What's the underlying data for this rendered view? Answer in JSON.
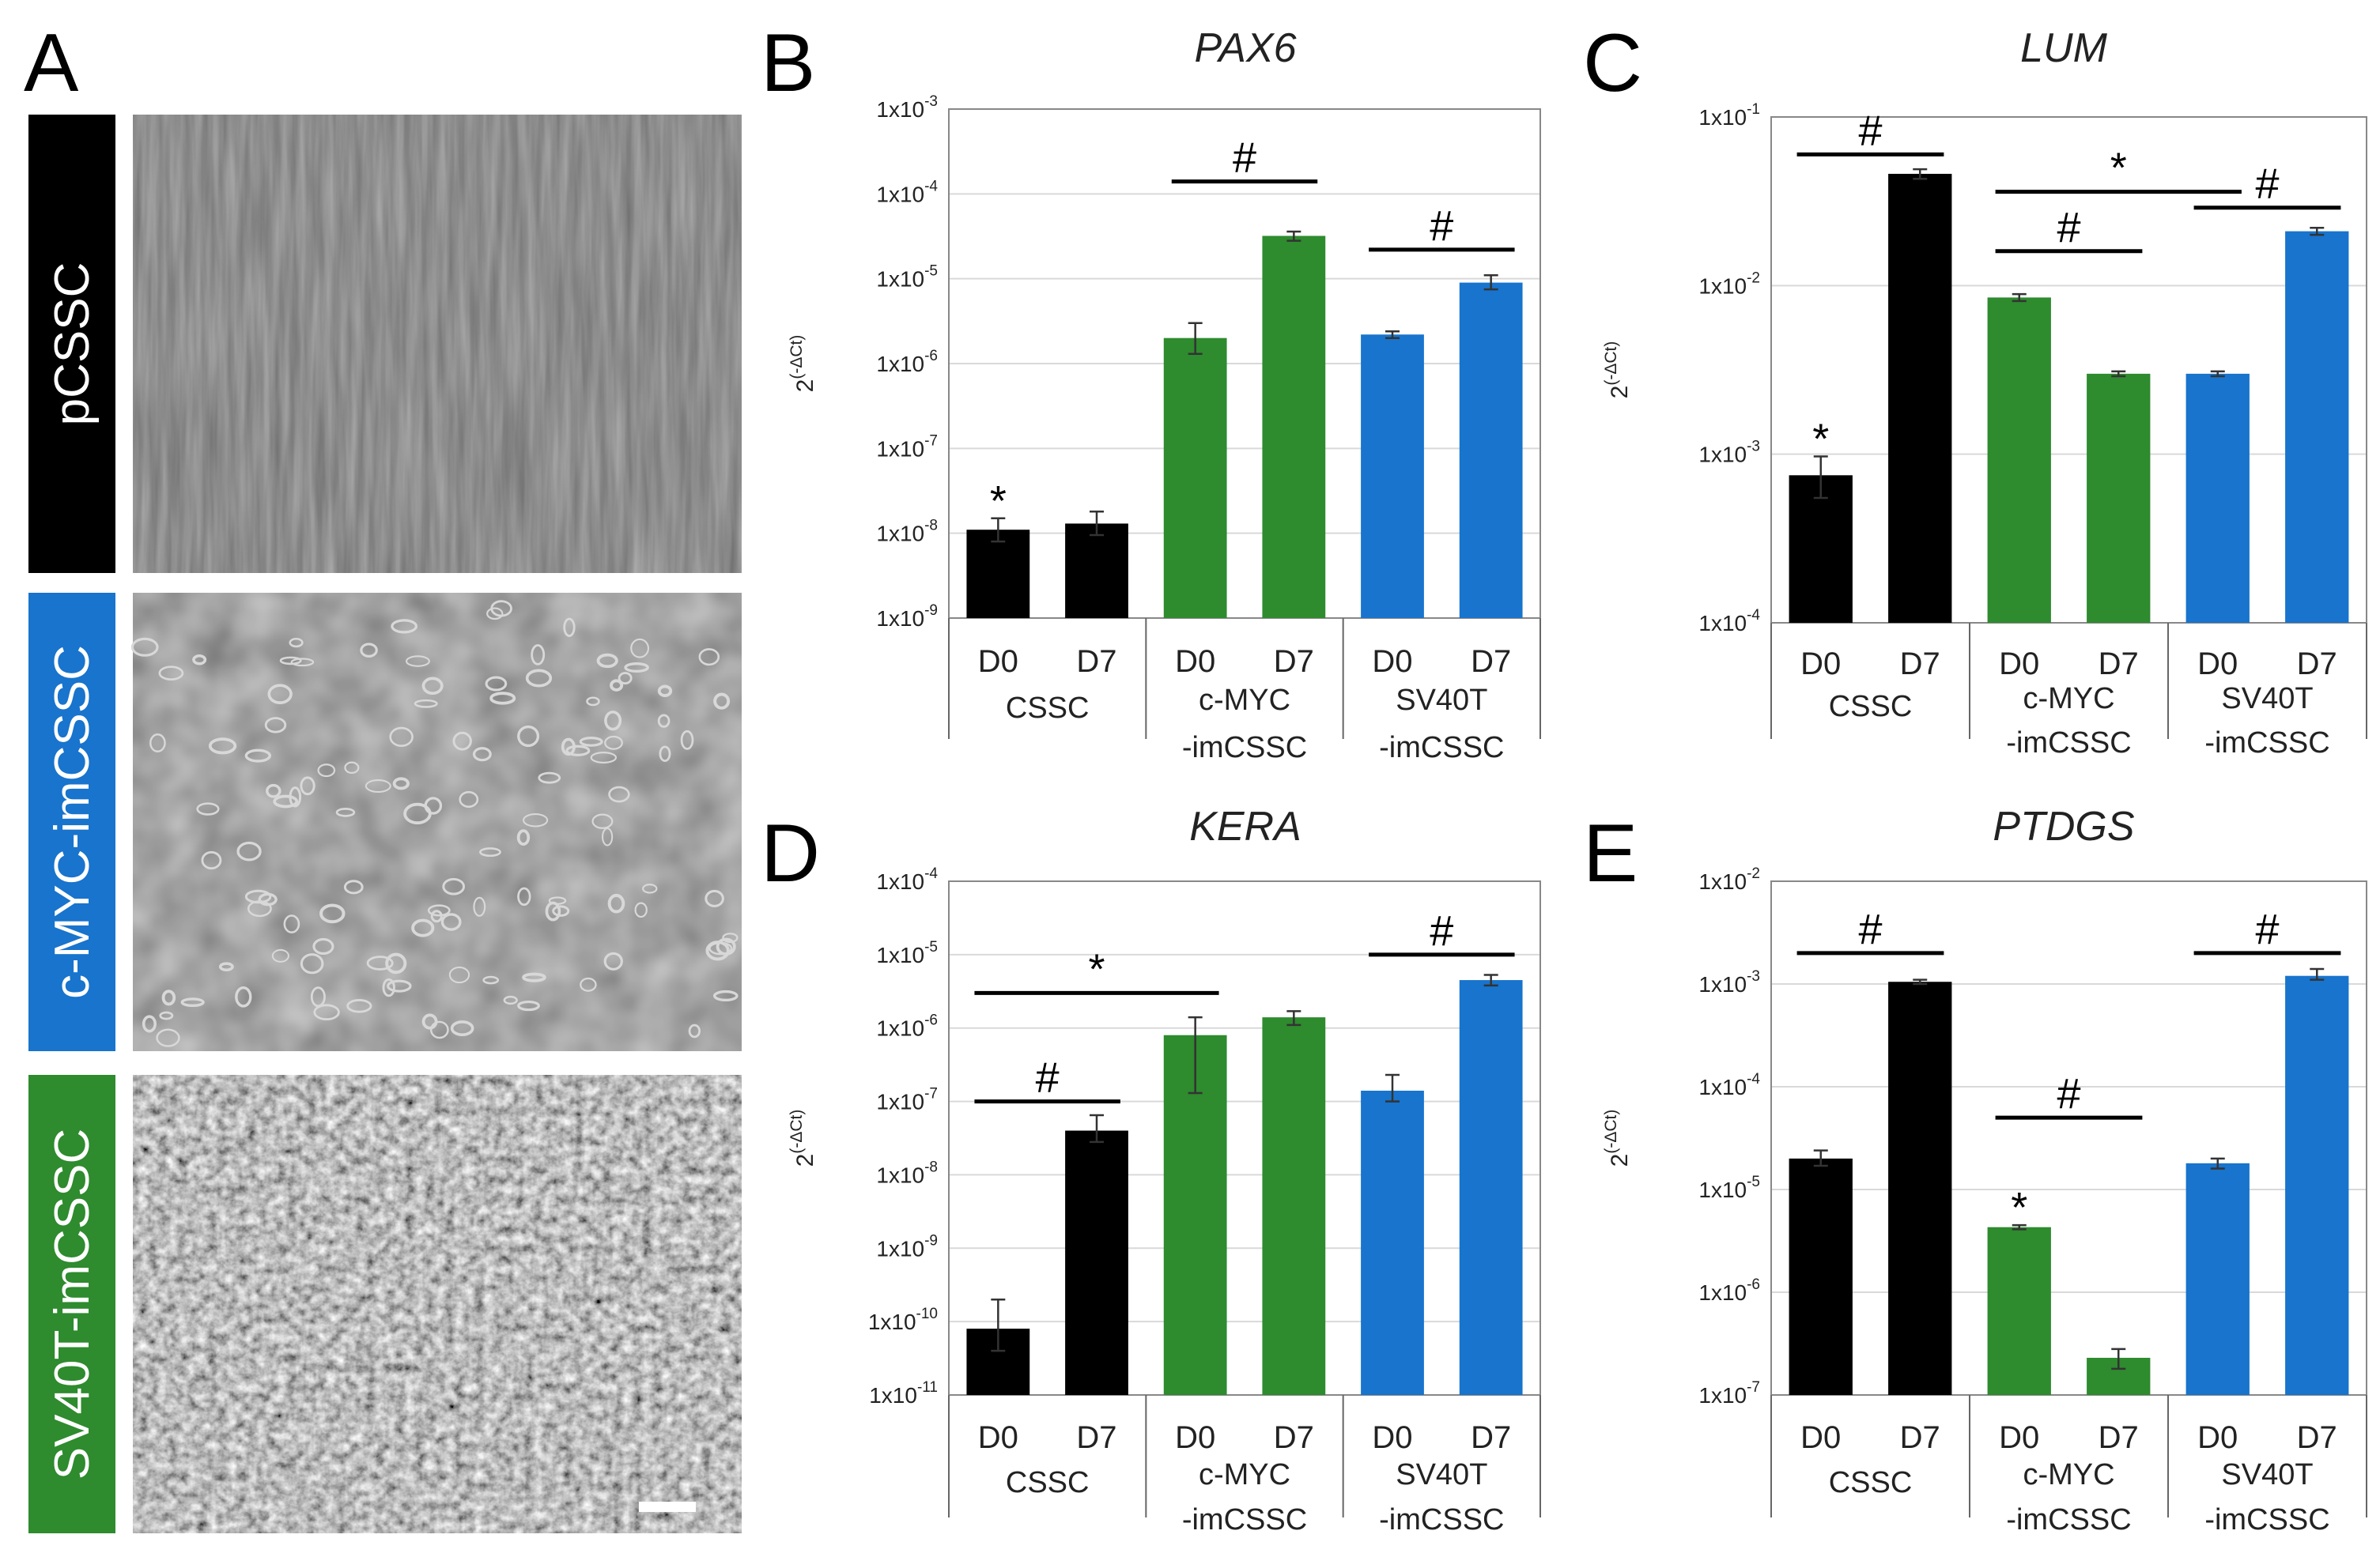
{
  "panel_a": {
    "letter": "A",
    "rows": [
      {
        "label": "pCSSC",
        "color": "#000000",
        "texture": "fibroblast"
      },
      {
        "label": "c-MYC-imCSSC",
        "color": "#1874CD",
        "texture": "sparse"
      },
      {
        "label": "SV40T-imCSSC",
        "color": "#2E8B2E",
        "texture": "dense"
      }
    ]
  },
  "colors": {
    "CSSC": "#000000",
    "c-MYC-imCSSC": "#2E8B2E",
    "SV40T-imCSSC": "#1874CD",
    "grid": "#d9d9d9"
  },
  "x_ticks": [
    "D0",
    "D7",
    "D0",
    "D7",
    "D0",
    "D7"
  ],
  "groups": [
    {
      "lines": [
        "CSSC"
      ]
    },
    {
      "lines": [
        "c-MYC",
        "-imCSSC"
      ]
    },
    {
      "lines": [
        "SV40T",
        "-imCSSC"
      ]
    }
  ],
  "ylabel": {
    "base": "2",
    "exp": "(-ΔCt)"
  },
  "chart_data": [
    {
      "letter": "B",
      "title": "PAX6",
      "type": "bar",
      "yscale": "log",
      "ylim_exp": [
        -9,
        -3
      ],
      "grid": true,
      "ytick_base": "1x10",
      "yticks": [
        "-9",
        "-8",
        "-7",
        "-6",
        "-5",
        "-4",
        "-3"
      ],
      "ylabel_shown": true,
      "values": [
        1.1e-08,
        1.3e-08,
        2e-06,
        3.2e-05,
        2.2e-06,
        9e-06
      ],
      "err_low": [
        8e-09,
        9.5e-09,
        1.3e-06,
        2.8e-05,
        2e-06,
        7.5e-06
      ],
      "err_high": [
        1.5e-08,
        1.8e-08,
        3e-06,
        3.6e-05,
        2.4e-06,
        1.1e-05
      ],
      "star_bars": [
        0
      ],
      "brackets": [
        {
          "from": 2,
          "to": 3,
          "y": 0.00014,
          "mark": "#"
        },
        {
          "from": 4,
          "to": 5,
          "y": 2.2e-05,
          "mark": "#"
        }
      ]
    },
    {
      "letter": "C",
      "title": "LUM",
      "type": "bar",
      "yscale": "log",
      "ylim_exp": [
        -4,
        -1
      ],
      "grid": true,
      "ytick_base": "1x10",
      "yticks": [
        "-4",
        "-3",
        "-2",
        "-1"
      ],
      "ylabel_shown": true,
      "values": [
        0.00075,
        0.046,
        0.0085,
        0.003,
        0.003,
        0.021
      ],
      "err_low": [
        0.00055,
        0.043,
        0.0081,
        0.0029,
        0.0029,
        0.02
      ],
      "err_high": [
        0.00097,
        0.049,
        0.0089,
        0.0031,
        0.0031,
        0.022
      ],
      "star_bars": [
        0
      ],
      "brackets": [
        {
          "from": 0,
          "to": 1,
          "y": 0.06,
          "mark": "#"
        },
        {
          "from": 2,
          "to": 4,
          "y": 0.036,
          "mark": "*"
        },
        {
          "from": 4,
          "to": 5,
          "y": 0.029,
          "mark": "#"
        },
        {
          "from": 2,
          "to": 3,
          "y": 0.016,
          "mark": "#"
        }
      ]
    },
    {
      "letter": "D",
      "title": "KERA",
      "type": "bar",
      "yscale": "log",
      "ylim_exp": [
        -11,
        -4
      ],
      "grid": true,
      "ytick_base": "1x10",
      "yticks": [
        "-11",
        "-10",
        "-9",
        "-8",
        "-7",
        "-6",
        "-5",
        "-4"
      ],
      "ylabel_shown": true,
      "values": [
        8e-11,
        4e-08,
        8e-07,
        1.4e-06,
        1.4e-07,
        4.5e-06
      ],
      "err_low": [
        4e-11,
        2.8e-08,
        1.3e-07,
        1.1e-06,
        1e-07,
        3.8e-06
      ],
      "err_high": [
        2e-10,
        6.5e-08,
        1.4e-06,
        1.7e-06,
        2.3e-07,
        5.3e-06
      ],
      "star_bars": [],
      "brackets": [
        {
          "from": 0,
          "to": 2,
          "y": 3e-06,
          "mark": "*"
        },
        {
          "from": 0,
          "to": 1,
          "y": 1e-07,
          "mark": "#"
        },
        {
          "from": 4,
          "to": 5,
          "y": 1e-05,
          "mark": "#"
        }
      ]
    },
    {
      "letter": "E",
      "title": "PTDGS",
      "type": "bar",
      "yscale": "log",
      "ylim_exp": [
        -7,
        -2
      ],
      "grid": true,
      "ytick_base": "1x10",
      "yticks": [
        "-7",
        "-6",
        "-5",
        "-4",
        "-3",
        "-2"
      ],
      "ylabel_shown": true,
      "values": [
        2e-05,
        0.00105,
        4.3e-06,
        2.3e-07,
        1.8e-05,
        0.0012
      ],
      "err_low": [
        1.7e-05,
        0.001,
        4.1e-06,
        1.8e-07,
        1.6e-05,
        0.0011
      ],
      "err_high": [
        2.4e-05,
        0.0011,
        4.5e-06,
        2.8e-07,
        2e-05,
        0.0014
      ],
      "star_bars": [
        2
      ],
      "brackets": [
        {
          "from": 0,
          "to": 1,
          "y": 0.002,
          "mark": "#"
        },
        {
          "from": 4,
          "to": 5,
          "y": 0.002,
          "mark": "#"
        },
        {
          "from": 2,
          "to": 3,
          "y": 5e-05,
          "mark": "#"
        }
      ]
    }
  ]
}
